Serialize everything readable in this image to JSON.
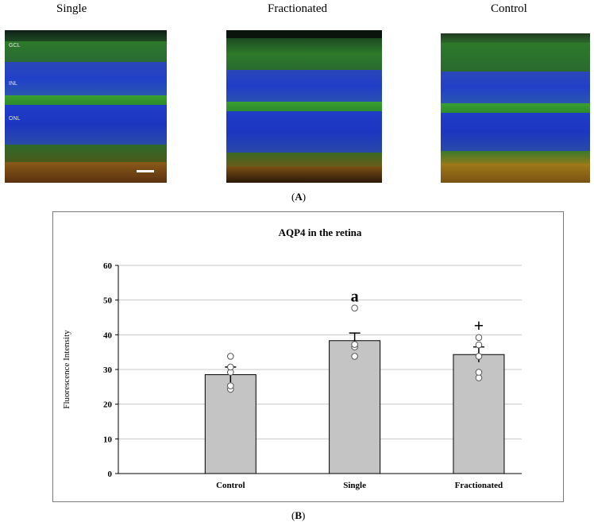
{
  "panel_a": {
    "titles": [
      "Single",
      "Fractionated",
      "Control"
    ],
    "layer_labels": [
      "GCL",
      "INL",
      "ONL"
    ],
    "letter": "A"
  },
  "panel_b": {
    "letter": "B"
  },
  "colors": {
    "bar_fill": "#c4c4c4",
    "bar_stroke": "#000000",
    "grid": "#c8c8c8",
    "nuclei_blue": "#1f3dc8",
    "aqp4_green": "#2f7d2a",
    "photoreceptor_orange": "#8a5a18"
  },
  "chart_data": {
    "type": "bar",
    "title": "AQP4 in the retina",
    "xlabel": "",
    "ylabel": "Fluorescence Intensity",
    "ylim": [
      0,
      60
    ],
    "yticks": [
      0,
      10,
      20,
      30,
      40,
      50,
      60
    ],
    "grid": true,
    "categories": [
      "Control",
      "Single",
      "Fractionated"
    ],
    "values": [
      28.5,
      38.3,
      34.3
    ],
    "errors": [
      2.2,
      2.2,
      2.2
    ],
    "points": [
      [
        24.3,
        25.3,
        29.2,
        30.7,
        33.8
      ],
      [
        33.8,
        36.5,
        37.2,
        47.7
      ],
      [
        27.6,
        29.2,
        33.8,
        37.1,
        39.2
      ]
    ],
    "annotations": [
      "",
      "a",
      "+"
    ]
  }
}
